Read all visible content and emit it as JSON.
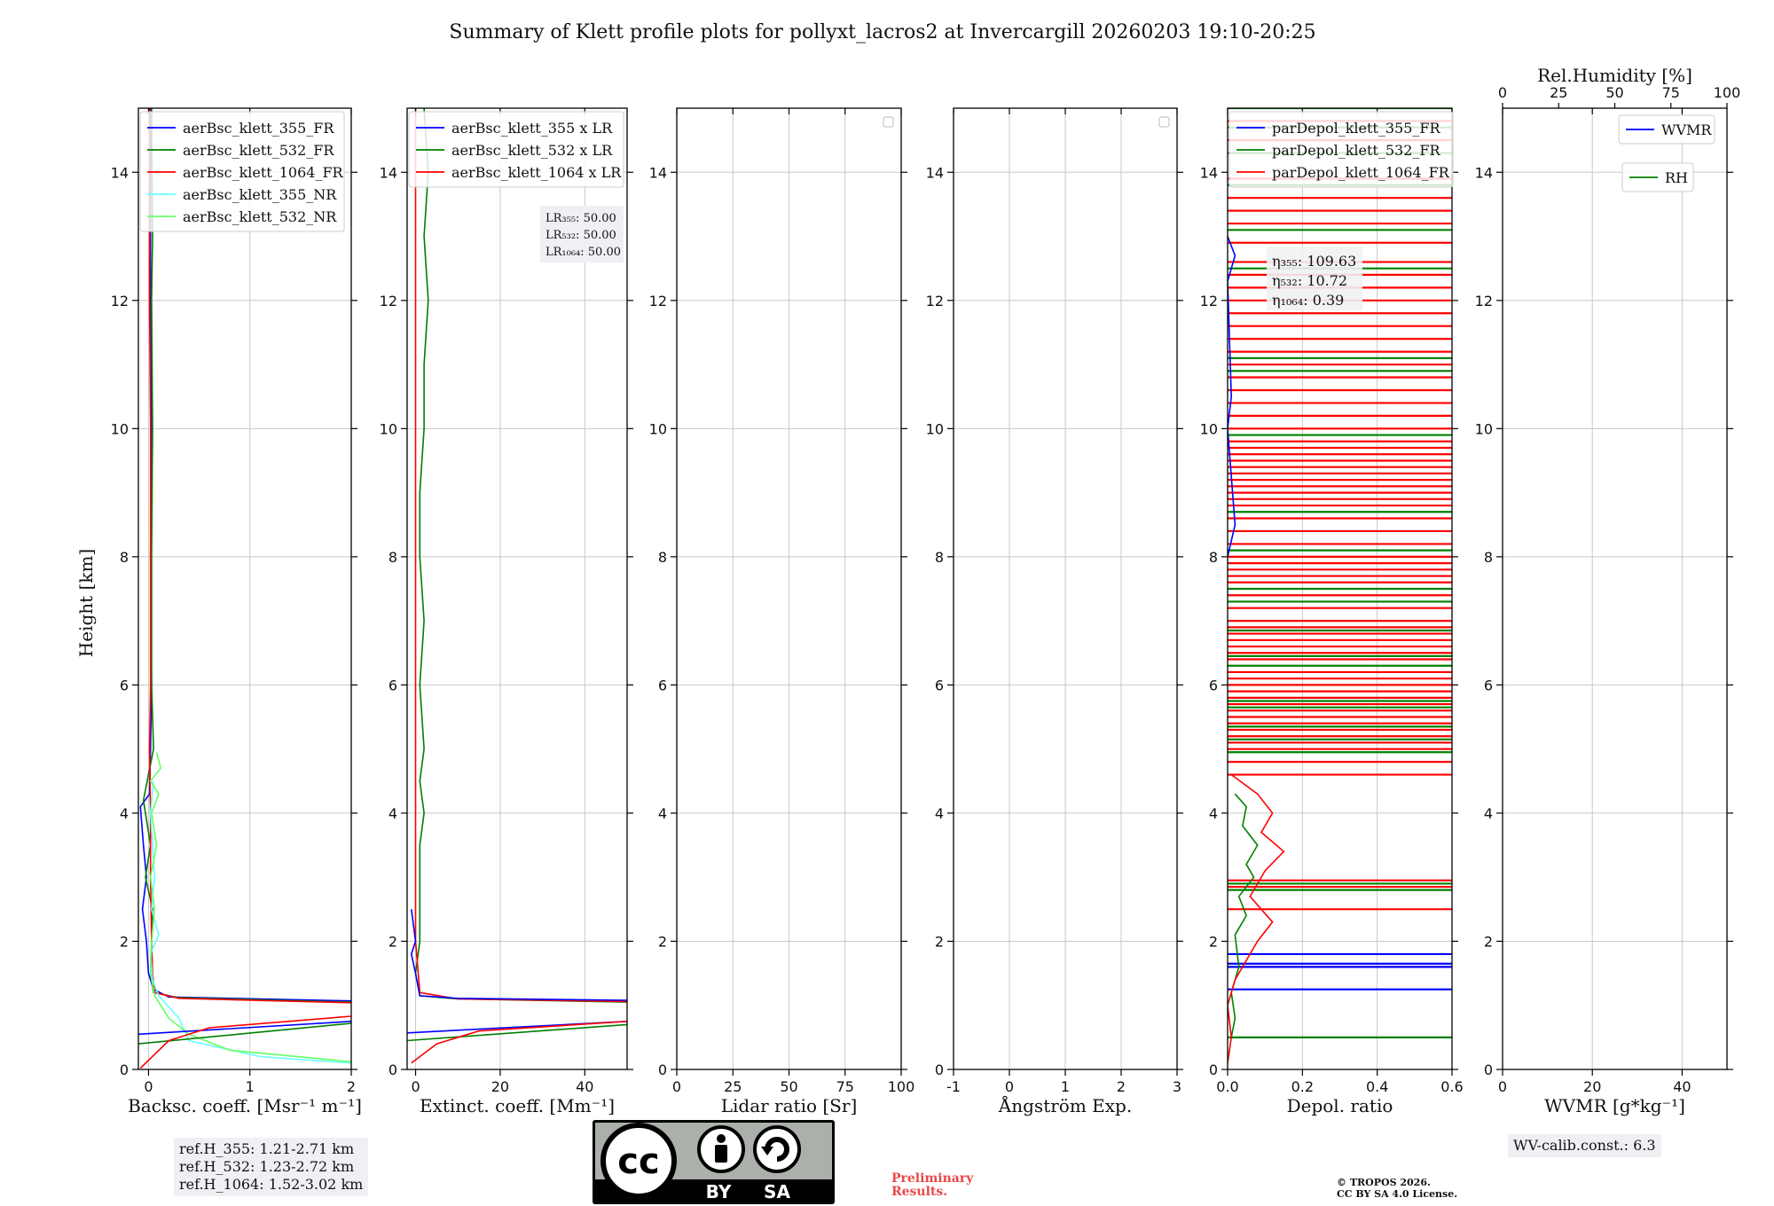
{
  "title": "Summary of Klett profile plots for pollyxt_lacros2 at Invercargill 20260203 19:10-20:25",
  "y_axis_label": "Height [km]",
  "colors": {
    "blue": "#0000ff",
    "green": "#008000",
    "red": "#ff0000",
    "cyan": "#66ffff",
    "lightgreen": "#66ff66",
    "grid": "#c8c8c8"
  },
  "chart_data": [
    {
      "type": "line",
      "xlabel": "Backsc. coeff. [Msr⁻¹ m⁻¹]",
      "xlim": [
        -0.1,
        2
      ],
      "ylim": [
        0,
        15
      ],
      "xticks": [
        0,
        1,
        2
      ],
      "yticks": [
        0,
        2,
        4,
        6,
        8,
        10,
        12,
        14
      ],
      "legend": [
        "aerBsc_klett_355_FR",
        "aerBsc_klett_532_FR",
        "aerBsc_klett_1064_FR",
        "aerBsc_klett_355_NR",
        "aerBsc_klett_532_NR"
      ],
      "series": [
        {
          "name": "aerBsc_klett_355_FR",
          "color": "#0000ff",
          "points": [
            [
              0.02,
              15
            ],
            [
              0.02,
              12
            ],
            [
              0.03,
              10
            ],
            [
              0.02,
              8
            ],
            [
              0.03,
              6
            ],
            [
              0.02,
              5
            ],
            [
              0.01,
              4.3
            ],
            [
              -0.08,
              4.1
            ],
            [
              -0.05,
              3.5
            ],
            [
              -0.02,
              3
            ],
            [
              -0.06,
              2.5
            ],
            [
              -0.02,
              2
            ],
            [
              0,
              1.5
            ],
            [
              0.05,
              1.25
            ],
            [
              0.2,
              1.13
            ],
            [
              2,
              1.07
            ]
          ]
        },
        {
          "name": "aerBsc_klett_532_FR",
          "color": "#008000",
          "points": [
            [
              0.03,
              15
            ],
            [
              0.04,
              13
            ],
            [
              0.03,
              12
            ],
            [
              0.04,
              10
            ],
            [
              0.03,
              8
            ],
            [
              0.03,
              6
            ],
            [
              0.05,
              5
            ],
            [
              -0.05,
              4.2
            ],
            [
              0.02,
              3.5
            ],
            [
              -0.03,
              3
            ],
            [
              0.04,
              2.5
            ],
            [
              0.03,
              2
            ],
            [
              0.02,
              1.5
            ],
            [
              0.05,
              1.2
            ],
            [
              0.3,
              1.12
            ],
            [
              2,
              1.05
            ]
          ]
        },
        {
          "name": "aerBsc_klett_1064_FR",
          "color": "#ff0000",
          "points": [
            [
              0.01,
              15
            ],
            [
              0.01,
              12
            ],
            [
              0.02,
              10
            ],
            [
              0.02,
              8
            ],
            [
              0.02,
              6
            ],
            [
              0.01,
              5
            ],
            [
              0.02,
              4
            ],
            [
              0.02,
              3
            ],
            [
              0.03,
              2
            ],
            [
              0.04,
              1.5
            ],
            [
              0.06,
              1.2
            ],
            [
              0.3,
              1.11
            ],
            [
              2,
              1.04
            ]
          ]
        },
        {
          "name": "aerBsc_klett_355_NR",
          "color": "#66ffff",
          "points": [
            [
              0.05,
              4.5
            ],
            [
              0.02,
              4
            ],
            [
              0.06,
              3
            ],
            [
              0.03,
              2.5
            ],
            [
              0.1,
              2.1
            ],
            [
              0.02,
              1.8
            ],
            [
              0.04,
              1.4
            ],
            [
              0.1,
              1.15
            ],
            [
              0.3,
              0.8
            ],
            [
              0.4,
              0.45
            ],
            [
              1.1,
              0.2
            ],
            [
              2,
              0.1
            ]
          ]
        },
        {
          "name": "aerBsc_klett_532_NR",
          "color": "#66ff66",
          "points": [
            [
              0.08,
              4.95
            ],
            [
              0.12,
              4.7
            ],
            [
              0.02,
              4.5
            ],
            [
              0.1,
              4.3
            ],
            [
              0.03,
              4
            ],
            [
              0.08,
              3.5
            ],
            [
              0.02,
              3
            ],
            [
              0.06,
              2.5
            ],
            [
              0.03,
              2
            ],
            [
              0.02,
              1.5
            ],
            [
              0.06,
              1.15
            ],
            [
              0.2,
              0.8
            ],
            [
              0.4,
              0.55
            ],
            [
              0.8,
              0.3
            ],
            [
              2,
              0.12
            ]
          ]
        },
        {
          "name": "low_blue",
          "color": "#0000ff",
          "points": [
            [
              -0.1,
              0.55
            ],
            [
              2,
              0.75
            ]
          ]
        },
        {
          "name": "low_green",
          "color": "#008000",
          "points": [
            [
              -0.1,
              0.4
            ],
            [
              2,
              0.72
            ]
          ]
        },
        {
          "name": "low_red",
          "color": "#ff0000",
          "points": [
            [
              -0.08,
              0.02
            ],
            [
              0.2,
              0.45
            ],
            [
              0.6,
              0.65
            ],
            [
              2,
              0.83
            ]
          ]
        }
      ]
    },
    {
      "type": "line",
      "xlabel": "Extinct. coeff. [Mm⁻¹]",
      "xlim": [
        -2,
        50
      ],
      "ylim": [
        0,
        15
      ],
      "xticks": [
        0,
        20,
        40
      ],
      "yticks": [
        0,
        2,
        4,
        6,
        8,
        10,
        12,
        14
      ],
      "legend": [
        "aerBsc_klett_355 x LR",
        "aerBsc_klett_532 x LR",
        "aerBsc_klett_1064 x LR"
      ],
      "annotations": [
        "LR₃₅₅: 50.00",
        "LR₅₃₂: 50.00",
        "LR₁₀₆₄: 50.00"
      ],
      "series": [
        {
          "name": "aerBsc_klett_532 x LR",
          "color": "#008000",
          "points": [
            [
              2,
              15
            ],
            [
              3,
              14
            ],
            [
              2,
              13
            ],
            [
              3,
              12
            ],
            [
              2,
              11
            ],
            [
              2,
              10
            ],
            [
              1,
              9
            ],
            [
              1,
              8
            ],
            [
              2,
              7
            ],
            [
              1,
              6
            ],
            [
              2,
              5
            ],
            [
              1,
              4.5
            ],
            [
              2,
              4
            ],
            [
              1,
              3.5
            ],
            [
              1,
              3
            ],
            [
              1,
              2.5
            ],
            [
              1,
              2
            ],
            [
              0,
              1.5
            ],
            [
              1,
              1.15
            ],
            [
              10,
              1.1
            ],
            [
              50,
              1.05
            ]
          ]
        },
        {
          "name": "aerBsc_klett_1064 x LR",
          "color": "#ff0000",
          "points": [
            [
              0,
              15
            ],
            [
              0,
              12
            ],
            [
              0,
              10
            ],
            [
              0,
              8
            ],
            [
              0,
              6
            ],
            [
              0,
              4
            ],
            [
              0,
              2
            ],
            [
              1,
              1.2
            ],
            [
              10,
              1.1
            ],
            [
              50,
              1.06
            ]
          ]
        },
        {
          "name": "aerBsc_klett_355 x LR",
          "color": "#0000ff",
          "points": [
            [
              -1,
              2.5
            ],
            [
              0,
              2
            ],
            [
              -1,
              1.8
            ],
            [
              0,
              1.5
            ],
            [
              1,
              1.15
            ],
            [
              10,
              1.11
            ],
            [
              50,
              1.08
            ]
          ]
        },
        {
          "name": "low_blue",
          "color": "#0000ff",
          "points": [
            [
              -2,
              0.57
            ],
            [
              50,
              0.75
            ]
          ]
        },
        {
          "name": "low_green",
          "color": "#008000",
          "points": [
            [
              -2,
              0.45
            ],
            [
              50,
              0.7
            ]
          ]
        },
        {
          "name": "low_red",
          "color": "#ff0000",
          "points": [
            [
              -1,
              0.1
            ],
            [
              5,
              0.4
            ],
            [
              15,
              0.6
            ],
            [
              50,
              0.75
            ]
          ]
        }
      ]
    },
    {
      "type": "line",
      "xlabel": "Lidar ratio [Sr]",
      "xlim": [
        0,
        100
      ],
      "ylim": [
        0,
        15
      ],
      "xticks": [
        0,
        25,
        50,
        75,
        100
      ],
      "yticks": [
        0,
        2,
        4,
        6,
        8,
        10,
        12,
        14
      ],
      "legend": [],
      "series": []
    },
    {
      "type": "line",
      "xlabel": "Ångström Exp.",
      "xlim": [
        -1,
        3
      ],
      "ylim": [
        0,
        15
      ],
      "xticks": [
        -1,
        0,
        1,
        2,
        3
      ],
      "yticks": [
        0,
        2,
        4,
        6,
        8,
        10,
        12,
        14
      ],
      "legend": [],
      "series": []
    },
    {
      "type": "line",
      "xlabel": "Depol. ratio",
      "xlim": [
        0,
        0.6
      ],
      "ylim": [
        0,
        15
      ],
      "xticks": [
        0.0,
        0.2,
        0.4,
        0.6
      ],
      "yticks": [
        0,
        2,
        4,
        6,
        8,
        10,
        12,
        14
      ],
      "legend": [
        "parDepol_klett_355_FR",
        "parDepol_klett_532_FR",
        "parDepol_klett_1064_FR"
      ],
      "annotations": [
        "η₃₅₅: 109.63",
        "η₅₃₂: 10.72",
        "η₁₀₆₄: 0.39"
      ],
      "series": [
        {
          "name": "parDepol_klett_532_FR",
          "color": "#008000",
          "points": [
            [
              0.02,
              4.3
            ],
            [
              0.05,
              4.1
            ],
            [
              0.04,
              3.8
            ],
            [
              0.08,
              3.5
            ],
            [
              0.05,
              3.2
            ],
            [
              0.07,
              3.0
            ],
            [
              0.03,
              2.7
            ],
            [
              0.05,
              2.4
            ],
            [
              0.02,
              2.1
            ],
            [
              0.03,
              1.6
            ],
            [
              0.01,
              1.2
            ],
            [
              0.02,
              0.8
            ],
            [
              0.01,
              0.5
            ]
          ]
        },
        {
          "name": "parDepol_klett_1064_FR",
          "color": "#ff0000",
          "points": [
            [
              0.01,
              4.6
            ],
            [
              0.08,
              4.3
            ],
            [
              0.12,
              4.0
            ],
            [
              0.09,
              3.7
            ],
            [
              0.15,
              3.4
            ],
            [
              0.1,
              3.1
            ],
            [
              0.06,
              2.7
            ],
            [
              0.12,
              2.3
            ],
            [
              0.08,
              2.0
            ],
            [
              0.02,
              1.4
            ],
            [
              0.0,
              1.0
            ],
            [
              0.01,
              0.5
            ],
            [
              0.0,
              0.1
            ]
          ]
        },
        {
          "name": "parDepol_klett_355_FR",
          "color": "#0000ff",
          "points": [
            [
              0.0,
              13.0
            ],
            [
              0.02,
              12.7
            ],
            [
              0.0,
              12.3
            ],
            [
              0.01,
              10.5
            ],
            [
              0.0,
              10.0
            ],
            [
              0.02,
              8.5
            ],
            [
              0.0,
              8.0
            ]
          ]
        }
      ],
      "spikes": {
        "red": [
          14.8,
          14.5,
          13.9,
          13.6,
          13.4,
          13.2,
          12.9,
          12.6,
          12.4,
          12.2,
          12.0,
          11.8,
          11.6,
          11.4,
          11.2,
          11.0,
          10.8,
          10.6,
          10.4,
          10.2,
          10.0,
          9.8,
          9.7,
          9.6,
          9.5,
          9.4,
          9.3,
          9.2,
          9.1,
          9.0,
          8.9,
          8.8,
          8.6,
          8.4,
          8.2,
          8.0,
          7.9,
          7.8,
          7.7,
          7.6,
          7.4,
          7.2,
          7.0,
          6.9,
          6.8,
          6.7,
          6.6,
          6.5,
          6.4,
          6.2,
          6.1,
          6.0,
          5.9,
          5.8,
          5.7,
          5.6,
          5.5,
          5.4,
          5.3,
          5.2,
          5.1,
          5.0,
          4.8,
          4.6,
          2.95,
          2.85,
          2.5
        ],
        "green": [
          15.0,
          14.7,
          14.3,
          13.8,
          13.1,
          12.5,
          11.1,
          10.9,
          9.9,
          9.3,
          8.7,
          8.1,
          7.5,
          7.3,
          6.85,
          6.45,
          6.3,
          5.75,
          5.65,
          5.35,
          5.15,
          4.95,
          2.9,
          2.8,
          0.5
        ],
        "blue": [
          1.8,
          1.65,
          1.6,
          1.25
        ]
      }
    },
    {
      "type": "line",
      "xlabel": "WVMR [g*kg⁻¹]",
      "x2label": "Rel.Humidity [%]",
      "xlim": [
        0,
        50
      ],
      "x2lim": [
        0,
        100
      ],
      "ylim": [
        0,
        15
      ],
      "xticks": [
        0,
        20,
        40
      ],
      "x2ticks": [
        0,
        25,
        50,
        75,
        100
      ],
      "yticks": [
        0,
        2,
        4,
        6,
        8,
        10,
        12,
        14
      ],
      "legend": [
        "WVMR",
        "RH"
      ],
      "series": []
    }
  ],
  "notes": {
    "ref_h": [
      "ref.H_355: 1.21-2.71 km",
      "ref.H_532: 1.23-2.72 km",
      "ref.H_1064: 1.52-3.02 km"
    ],
    "wv_calib": "WV-calib.const.: 6.3",
    "preliminary": [
      "Preliminary",
      "Results."
    ],
    "copyright": [
      "© TROPOS 2026.",
      "CC BY SA 4.0 License."
    ],
    "cc_logo": {
      "main": "cc",
      "by": "BY",
      "sa": "SA"
    }
  }
}
